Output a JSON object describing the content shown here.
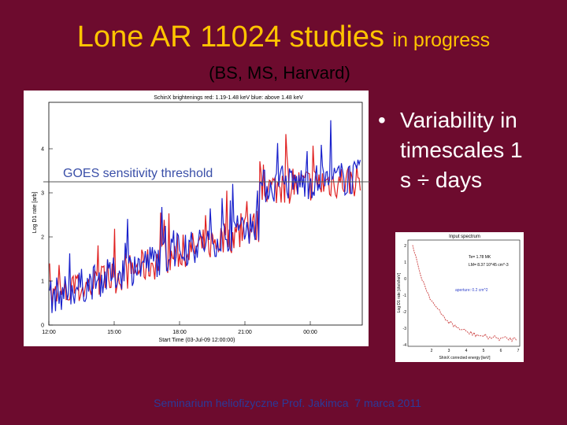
{
  "header": {
    "title": "Lone AR 11024 studies",
    "title_suffix": "in progress",
    "subtitle": "(BS, MS, Harvard)"
  },
  "left_plot": {
    "title": "SchinX brightenings red: 1.19-1.48 keV blue: above 1.48 keV",
    "y_label": "Log D1 rate [arb]",
    "x_label": "Start Time (03-Jul-09 12:00:00)",
    "y_ticks": [
      "0",
      "1",
      "2",
      "3",
      "4"
    ],
    "x_ticks": [
      "12:00",
      "15:00",
      "18:00",
      "21:00",
      "00:00"
    ],
    "annotation": "GOES sensitivity threshold"
  },
  "bullet": "Variability in timescales 1 s ÷ days",
  "right_plot": {
    "title": "Input spectrum",
    "temperature": "Te= 1.78 MK",
    "emission": "LM= 8.37 10^45 cm^-3",
    "aperture": "aperture: 0.2 cm^2",
    "y_label": "Log D1 rate [cts/s/keV]",
    "x_label": "ShinX corrected energy [keV]",
    "y_ticks": [
      "-4",
      "-3",
      "-2",
      "-1",
      "0",
      "1",
      "2"
    ],
    "x_ticks": [
      "2",
      "3",
      "4",
      "5",
      "6",
      "7"
    ]
  },
  "footer": "Seminarium heliofizyczne Prof. Jakimca  7 marca 2011"
}
